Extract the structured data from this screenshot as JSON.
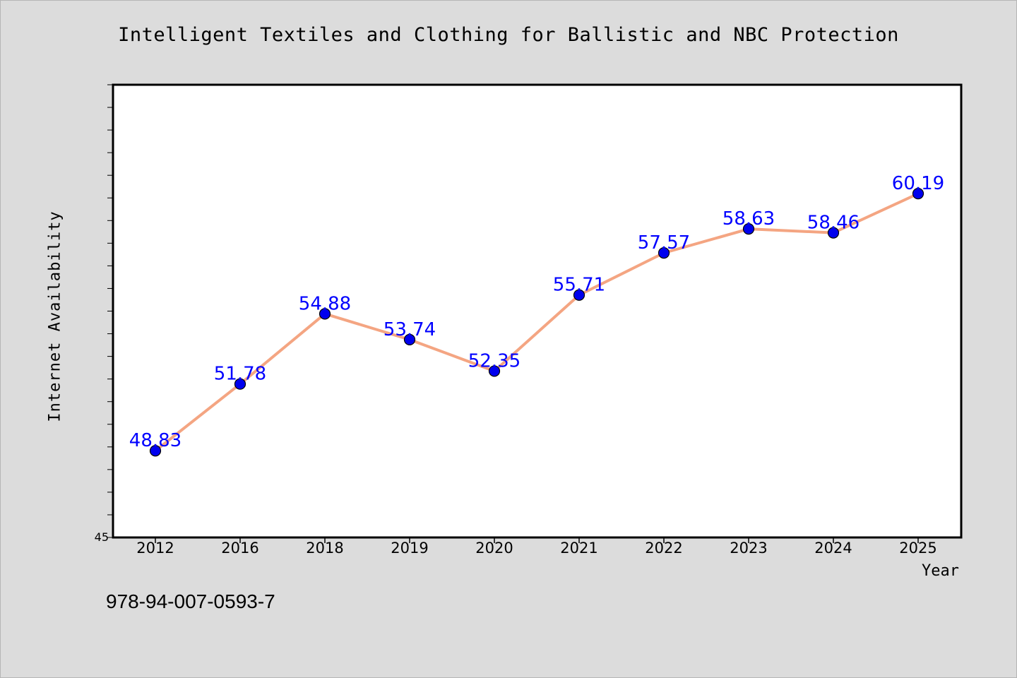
{
  "chart_data": {
    "type": "line",
    "title": "Intelligent Textiles and Clothing for Ballistic and NBC Protection",
    "xlabel": "Year",
    "ylabel": "Internet Availability",
    "categories": [
      "2012",
      "2016",
      "2018",
      "2019",
      "2020",
      "2021",
      "2022",
      "2023",
      "2024",
      "2025"
    ],
    "series": [
      {
        "values": [
          48.83,
          51.78,
          54.88,
          53.74,
          52.35,
          55.71,
          57.57,
          58.63,
          58.46,
          60.19
        ],
        "labels": [
          "48.83",
          "51.78",
          "54.88",
          "53.74",
          "52.35",
          "55.71",
          "57.57",
          "58.63",
          "58.46",
          "60.19"
        ]
      }
    ],
    "ylim": [
      45,
      65
    ],
    "y_tick_labels": [
      "45"
    ],
    "grid": false,
    "colors": {
      "line": "#f4a582",
      "marker": "#0000ee",
      "label": "#0000ff",
      "plot_bg": "#ffffff",
      "page_bg": "#dcdcdc"
    }
  },
  "footer": {
    "isbn": "978-94-007-0593-7"
  }
}
